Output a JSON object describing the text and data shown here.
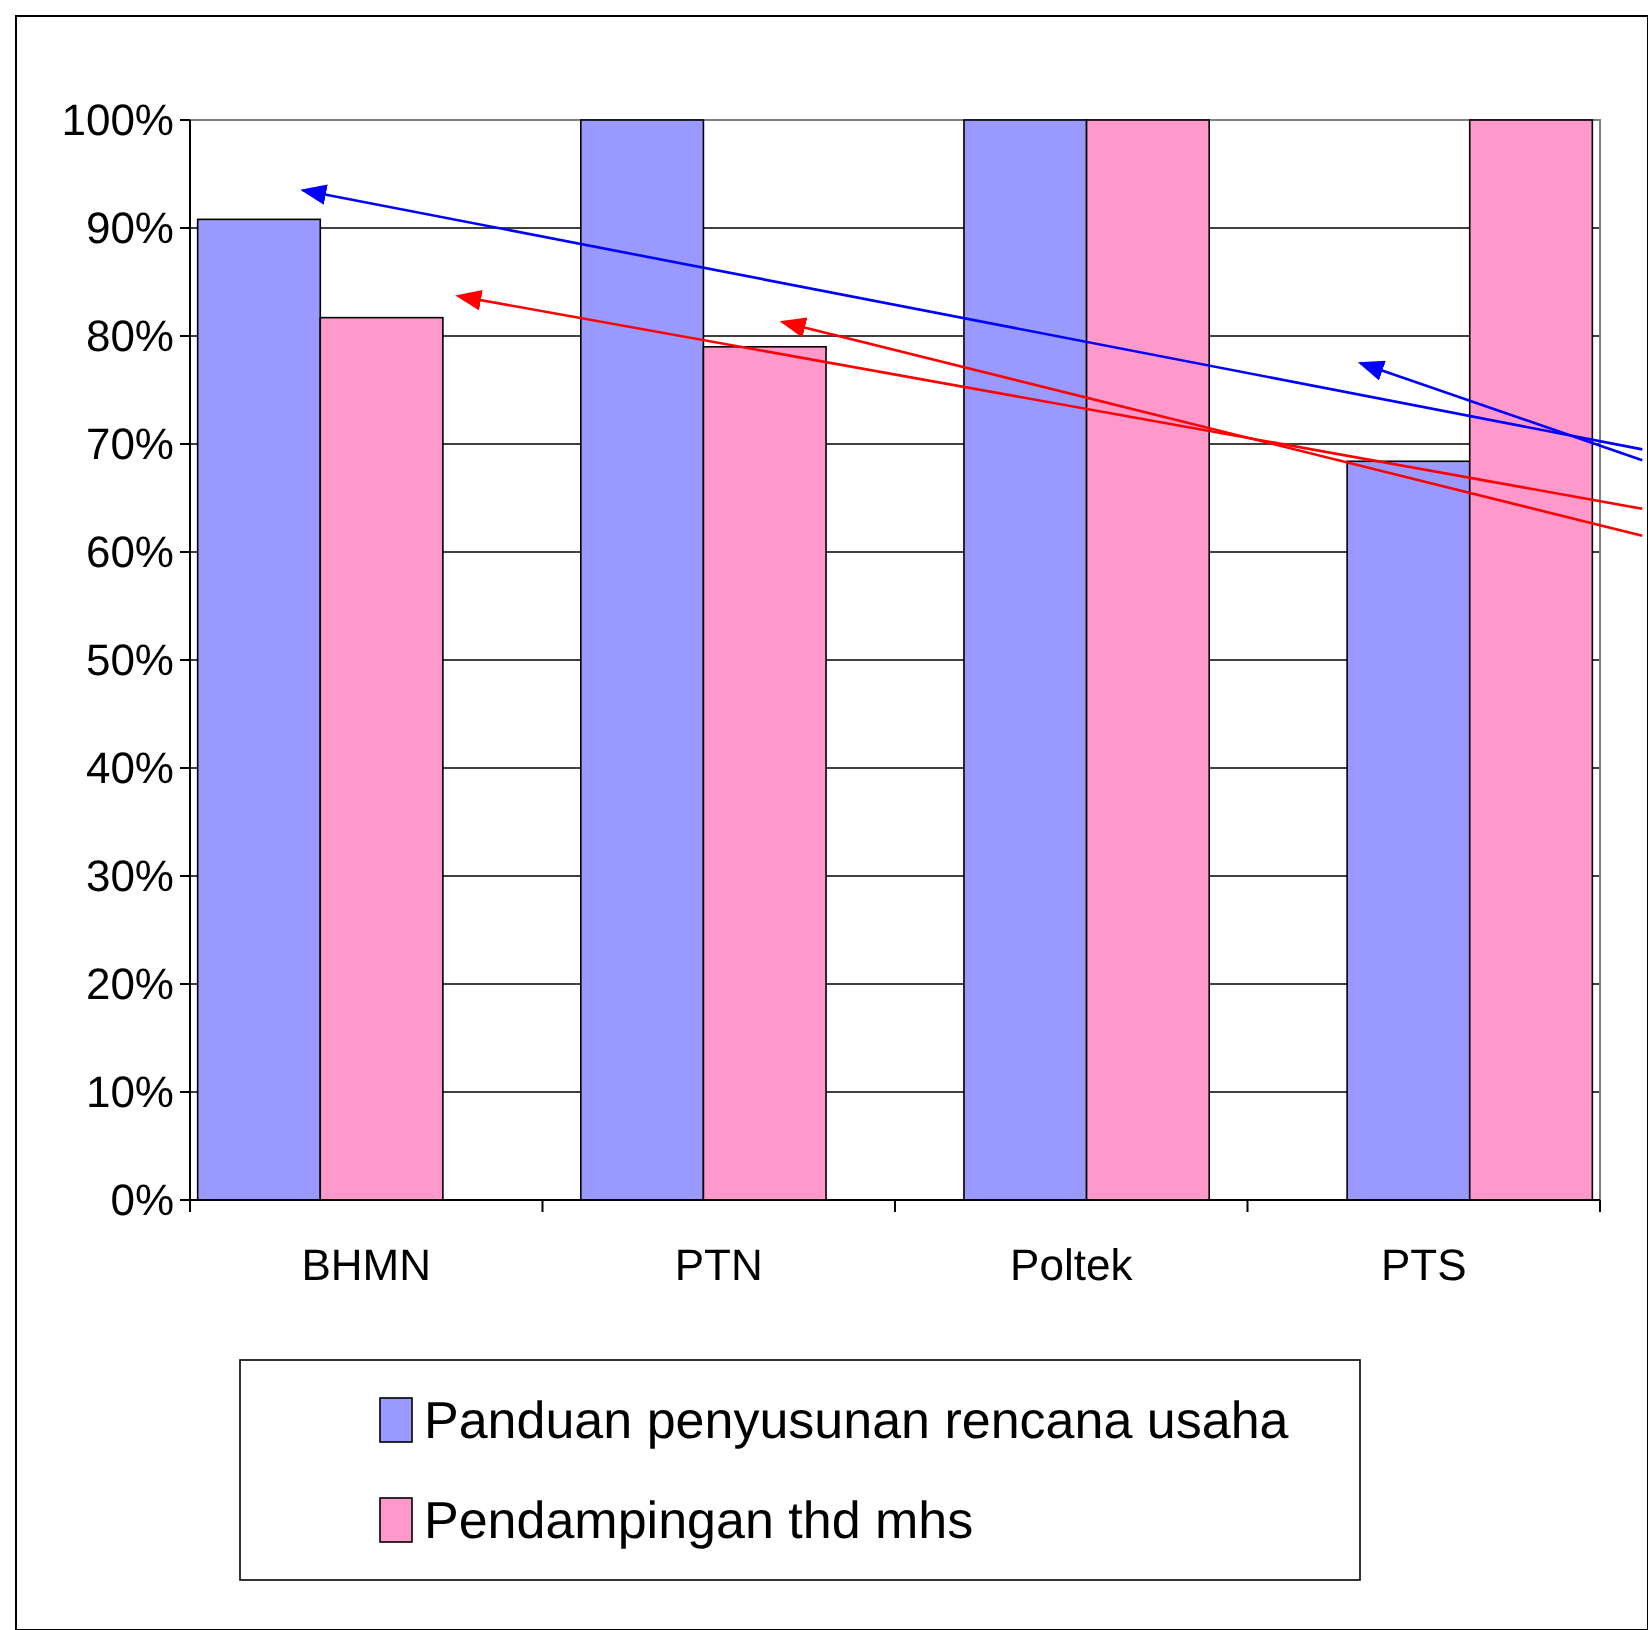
{
  "chart_data": {
    "type": "bar",
    "categories": [
      "BHMN",
      "PTN",
      "Poltek",
      "PTS"
    ],
    "series": [
      {
        "name": "Panduan penyusunan rencana usaha",
        "color": "#9999ff",
        "values": [
          90.8,
          100,
          100,
          68.4
        ]
      },
      {
        "name": "Pendampingan thd mhs",
        "color": "#ff99cc",
        "values": [
          81.7,
          79,
          100,
          100
        ]
      }
    ],
    "ylim": [
      0,
      100
    ],
    "yticks": [
      {
        "value": 0,
        "label": "0%"
      },
      {
        "value": 10,
        "label": "10%"
      },
      {
        "value": 20,
        "label": "20%"
      },
      {
        "value": 30,
        "label": "30%"
      },
      {
        "value": 40,
        "label": "40%"
      },
      {
        "value": 50,
        "label": "50%"
      },
      {
        "value": 60,
        "label": "60%"
      },
      {
        "value": 70,
        "label": "70%"
      },
      {
        "value": 80,
        "label": "80%"
      },
      {
        "value": 90,
        "label": "90%"
      },
      {
        "value": 100,
        "label": "100%"
      }
    ],
    "grid": "y",
    "legend": "bottom"
  }
}
